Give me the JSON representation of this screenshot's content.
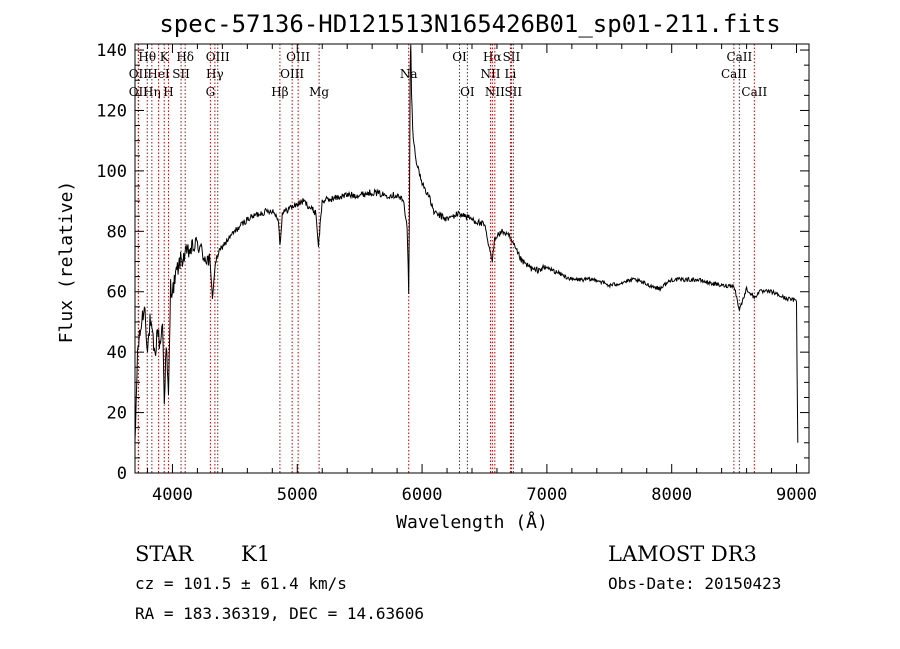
{
  "chart_data": {
    "type": "line",
    "title": "spec-57136-HD121513N165426B01_sp01-211.fits",
    "xlabel": "Wavelength (Å)",
    "ylabel": "Flux (relative)",
    "xlim": [
      3700,
      9100
    ],
    "ylim": [
      0,
      142
    ],
    "xticks": [
      4000,
      5000,
      6000,
      7000,
      8000,
      9000
    ],
    "yticks": [
      0,
      20,
      40,
      60,
      80,
      100,
      120,
      140
    ],
    "grid": false,
    "series": [
      {
        "x": [
          3700,
          3720,
          3740,
          3760,
          3780,
          3800,
          3820,
          3840,
          3860,
          3880,
          3900,
          3920,
          3935,
          3950,
          3968,
          3985,
          4000,
          4030,
          4060,
          4100,
          4150,
          4200,
          4250,
          4300,
          4320,
          4340,
          4360,
          4400,
          4500,
          4600,
          4700,
          4800,
          4850,
          4861,
          4880,
          4950,
          5050,
          5150,
          5170,
          5183,
          5200,
          5300,
          5400,
          5500,
          5600,
          5700,
          5800,
          5850,
          5880,
          5893,
          5900,
          5905,
          5910,
          5915,
          5930,
          5960,
          6000,
          6050,
          6100,
          6150,
          6200,
          6300,
          6400,
          6500,
          6550,
          6563,
          6580,
          6650,
          6700,
          6800,
          6900,
          7000,
          7200,
          7400,
          7500,
          7700,
          7900,
          8000,
          8200,
          8400,
          8500,
          8542,
          8600,
          8662,
          8700,
          8800,
          8900,
          9000,
          9010
        ],
        "values": [
          8,
          40,
          46,
          52,
          55,
          40,
          50,
          45,
          38,
          48,
          42,
          50,
          25,
          42,
          25,
          62,
          60,
          66,
          70,
          72,
          74,
          76,
          72,
          70,
          58,
          68,
          72,
          75,
          80,
          84,
          86,
          87,
          84,
          75,
          86,
          88,
          90,
          86,
          75,
          82,
          90,
          91,
          92,
          92,
          93,
          92,
          92,
          90,
          82,
          60,
          95,
          135,
          142,
          125,
          110,
          102,
          96,
          92,
          86,
          85,
          84,
          86,
          84,
          82,
          72,
          70,
          78,
          80,
          78,
          70,
          67,
          68,
          64,
          64,
          62,
          64,
          61,
          64,
          64,
          62,
          62,
          54,
          61,
          58,
          60,
          60,
          58,
          57,
          10
        ]
      }
    ],
    "line_markers": [
      {
        "label": "OII",
        "x": 3727,
        "row": 2
      },
      {
        "label": "Hθ",
        "x": 3798,
        "row": 1
      },
      {
        "label": "OII",
        "x": 3727,
        "row": 3
      },
      {
        "label": "Hη",
        "x": 3835,
        "row": 3
      },
      {
        "label": "HeI",
        "x": 3889,
        "row": 2
      },
      {
        "label": "K",
        "x": 3934,
        "row": 1
      },
      {
        "label": "H",
        "x": 3968,
        "row": 3
      },
      {
        "label": "SII",
        "x": 4069,
        "row": 2
      },
      {
        "label": "Hδ",
        "x": 4102,
        "row": 1
      },
      {
        "label": "OIII",
        "x": 4363,
        "row": 1
      },
      {
        "label": "Hγ",
        "x": 4340,
        "row": 2
      },
      {
        "label": "G",
        "x": 4304,
        "row": 3
      },
      {
        "label": "Hβ",
        "x": 4861,
        "row": 3
      },
      {
        "label": "OIII",
        "x": 5007,
        "row": 1
      },
      {
        "label": "OIII",
        "x": 4959,
        "row": 2
      },
      {
        "label": "Mg",
        "x": 5175,
        "row": 3
      },
      {
        "label": "Na",
        "x": 5893,
        "row": 2
      },
      {
        "label": "OI",
        "x": 6300,
        "row": 1
      },
      {
        "label": "OI",
        "x": 6363,
        "row": 3
      },
      {
        "label": "Hα",
        "x": 6563,
        "row": 1
      },
      {
        "label": "SII",
        "x": 6716,
        "row": 1
      },
      {
        "label": "NII",
        "x": 6548,
        "row": 2
      },
      {
        "label": "Li",
        "x": 6708,
        "row": 2
      },
      {
        "label": "NII",
        "x": 6583,
        "row": 3
      },
      {
        "label": "SII",
        "x": 6731,
        "row": 3
      },
      {
        "label": "CaII",
        "x": 8542,
        "row": 1
      },
      {
        "label": "CaII",
        "x": 8498,
        "row": 2
      },
      {
        "label": "CaII",
        "x": 8662,
        "row": 3
      }
    ]
  },
  "info": {
    "class": "STAR",
    "subclass": "K1",
    "survey": "LAMOST DR3",
    "cz": "cz = 101.5 ± 61.4 km/s",
    "obs_date": "Obs-Date: 20150423",
    "coords": "RA = 183.36319, DEC =  14.63606"
  }
}
